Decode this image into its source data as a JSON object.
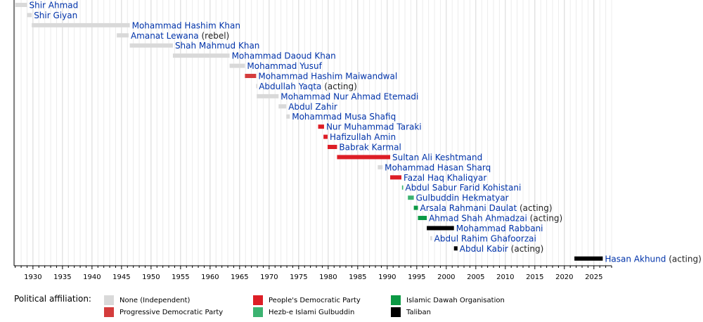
{
  "chart_data": {
    "type": "timeline",
    "xlim": [
      1926.8,
      2028
    ],
    "x_ticks": [
      "1930",
      "1935",
      "1940",
      "1945",
      "1950",
      "1955",
      "1960",
      "1965",
      "1970",
      "1975",
      "1980",
      "1985",
      "1990",
      "1995",
      "2000",
      "2005",
      "2010",
      "2015",
      "2020",
      "2025"
    ],
    "gridlines": "yearly",
    "legend_title": "Political affiliation:",
    "legend": [
      {
        "key": "none",
        "label": "None (Independent)",
        "color": "#d9d9d9"
      },
      {
        "key": "progressive",
        "label": "Progressive Democratic Party",
        "color": "#d43c3c"
      },
      {
        "key": "pdpa",
        "label": "People's Democratic Party",
        "color": "#dd1e26"
      },
      {
        "key": "hezb",
        "label": "Hezb-e Islami Gulbuddin",
        "color": "#3cb371"
      },
      {
        "key": "dawah",
        "label": "Islamic Dawah Organisation",
        "color": "#0b9944"
      },
      {
        "key": "taliban",
        "label": "Taliban",
        "color": "#000000"
      }
    ],
    "rows": [
      {
        "name": "Shir Ahmad",
        "suffix": "",
        "start": 1927.0,
        "end": 1929.0,
        "party": "none"
      },
      {
        "name": "Shir Giyan",
        "suffix": "",
        "start": 1929.0,
        "end": 1929.8,
        "party": "none"
      },
      {
        "name": "Mohammad Hashim Khan",
        "suffix": "",
        "start": 1929.8,
        "end": 1946.4,
        "party": "none"
      },
      {
        "name": "Amanat Lewana",
        "suffix": " (rebel)",
        "start": 1944.2,
        "end": 1946.2,
        "party": "none"
      },
      {
        "name": "Shah Mahmud Khan",
        "suffix": "",
        "start": 1946.4,
        "end": 1953.7,
        "party": "none"
      },
      {
        "name": "Mohammad Daoud Khan",
        "suffix": "",
        "start": 1953.7,
        "end": 1963.3,
        "party": "none"
      },
      {
        "name": "Mohammad Yusuf",
        "suffix": "",
        "start": 1963.3,
        "end": 1965.9,
        "party": "none"
      },
      {
        "name": "Mohammad Hashim Maiwandwal",
        "suffix": "",
        "start": 1965.9,
        "end": 1967.8,
        "party": "progressive"
      },
      {
        "name": "Abdullah Yaqta",
        "suffix": " (acting)",
        "start": 1967.8,
        "end": 1967.9,
        "party": "none"
      },
      {
        "name": "Mohammad Nur Ahmad Etemadi",
        "suffix": "",
        "start": 1967.9,
        "end": 1971.6,
        "party": "none"
      },
      {
        "name": "Abdul Zahir",
        "suffix": "",
        "start": 1971.6,
        "end": 1972.9,
        "party": "none"
      },
      {
        "name": "Mohammad Musa Shafiq",
        "suffix": "",
        "start": 1972.9,
        "end": 1973.5,
        "party": "none"
      },
      {
        "name": "Nur Muhammad Taraki",
        "suffix": "",
        "start": 1978.3,
        "end": 1979.3,
        "party": "pdpa"
      },
      {
        "name": "Hafizullah Amin",
        "suffix": "",
        "start": 1979.2,
        "end": 1979.9,
        "party": "pdpa"
      },
      {
        "name": "Babrak Karmal",
        "suffix": "",
        "start": 1979.9,
        "end": 1981.5,
        "party": "pdpa"
      },
      {
        "name": "Sultan Ali Keshtmand",
        "suffix": "",
        "start": 1981.5,
        "end": 1990.5,
        "party": "pdpa"
      },
      {
        "name": "Mohammad Hasan Sharq",
        "suffix": "",
        "start": 1988.4,
        "end": 1989.2,
        "party": "none"
      },
      {
        "name": "Fazal Haq Khaliqyar",
        "suffix": "",
        "start": 1990.5,
        "end": 1992.4,
        "party": "pdpa"
      },
      {
        "name": "Abdul Sabur Farid Kohistani",
        "suffix": "",
        "start": 1992.5,
        "end": 1992.7,
        "party": "hezb"
      },
      {
        "name": "Gulbuddin Hekmatyar",
        "suffix": "",
        "start": 1993.5,
        "end": 1994.5,
        "party": "hezb"
      },
      {
        "name": "Arsala Rahmani Daulat",
        "suffix": " (acting)",
        "start": 1994.5,
        "end": 1995.2,
        "party": "dawah"
      },
      {
        "name": "Ahmad Shah Ahmadzai",
        "suffix": " (acting)",
        "start": 1995.2,
        "end": 1996.7,
        "party": "dawah"
      },
      {
        "name": "Mohammad Rabbani",
        "suffix": "",
        "start": 1996.7,
        "end": 2001.3,
        "party": "taliban"
      },
      {
        "name": "Abdul Rahim Ghafoorzai",
        "suffix": "",
        "start": 1997.3,
        "end": 1997.6,
        "party": "none"
      },
      {
        "name": "Abdul Kabir",
        "suffix": " (acting)",
        "start": 2001.3,
        "end": 2001.9,
        "party": "taliban"
      },
      {
        "name": "Hasan Akhund",
        "suffix": " (acting)",
        "start": 2021.7,
        "end": 2026.5,
        "party": "taliban"
      }
    ]
  }
}
